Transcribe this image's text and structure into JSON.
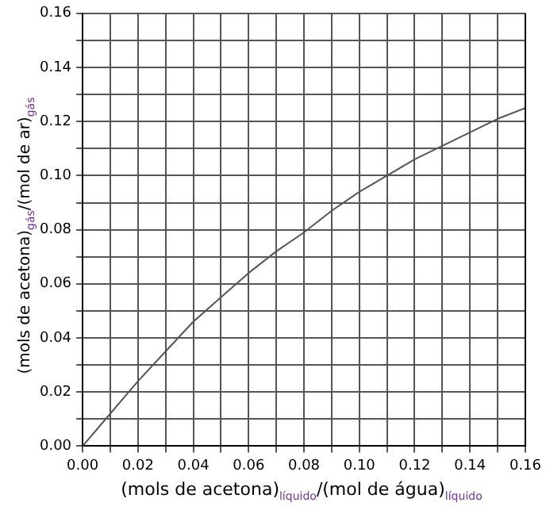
{
  "chart_data": {
    "type": "line",
    "xlabel": "(mols de acetona)$_{líquido}$/(mol de água)$_{líquido}$",
    "ylabel": "(mols de acetona)$_{gás}$/(mol de ar)$_{gás}$",
    "x": [
      0,
      0.01,
      0.02,
      0.03,
      0.04,
      0.05,
      0.06,
      0.07,
      0.08,
      0.09,
      0.1,
      0.11,
      0.12,
      0.13,
      0.14,
      0.15,
      0.16
    ],
    "series": [
      {
        "color": "#555555",
        "values": [
          0,
          0.012,
          0.024,
          0.035,
          0.046,
          0.055,
          0.064,
          0.072,
          0.079,
          0.087,
          0.094,
          0.1,
          0.106,
          0.111,
          0.116,
          0.121,
          0.125
        ]
      }
    ],
    "xlim": [
      0,
      0.16
    ],
    "ylim": [
      0,
      0.16
    ],
    "xticks": [
      {
        "value": 0,
        "label": "0.00"
      },
      {
        "value": 0.01,
        "label": null
      },
      {
        "value": 0.02,
        "label": "0.02"
      },
      {
        "value": 0.03,
        "label": null
      },
      {
        "value": 0.04,
        "label": "0.04"
      },
      {
        "value": 0.05,
        "label": null
      },
      {
        "value": 0.06,
        "label": "0.06"
      },
      {
        "value": 0.07,
        "label": null
      },
      {
        "value": 0.08,
        "label": "0.08"
      },
      {
        "value": 0.09,
        "label": null
      },
      {
        "value": 0.1,
        "label": "0.10"
      },
      {
        "value": 0.11,
        "label": null
      },
      {
        "value": 0.12,
        "label": "0.12"
      },
      {
        "value": 0.13,
        "label": null
      },
      {
        "value": 0.14,
        "label": "0.14"
      },
      {
        "value": 0.15,
        "label": null
      },
      {
        "value": 0.16,
        "label": "0.16"
      }
    ],
    "yticks": [
      {
        "value": 0,
        "label": "0.00"
      },
      {
        "value": 0.01,
        "label": null
      },
      {
        "value": 0.02,
        "label": "0.02"
      },
      {
        "value": 0.03,
        "label": null
      },
      {
        "value": 0.04,
        "label": "0.04"
      },
      {
        "value": 0.05,
        "label": null
      },
      {
        "value": 0.06,
        "label": "0.06"
      },
      {
        "value": 0.07,
        "label": null
      },
      {
        "value": 0.08,
        "label": "0.08"
      },
      {
        "value": 0.09,
        "label": null
      },
      {
        "value": 0.1,
        "label": "0.10"
      },
      {
        "value": 0.11,
        "label": null
      },
      {
        "value": 0.12,
        "label": "0.12"
      },
      {
        "value": 0.13,
        "label": null
      },
      {
        "value": 0.14,
        "label": "0.14"
      },
      {
        "value": 0.15,
        "label": null
      },
      {
        "value": 0.16,
        "label": "0.16"
      }
    ],
    "grid": true,
    "legend": false,
    "marker": "none",
    "line_style": "solid"
  }
}
